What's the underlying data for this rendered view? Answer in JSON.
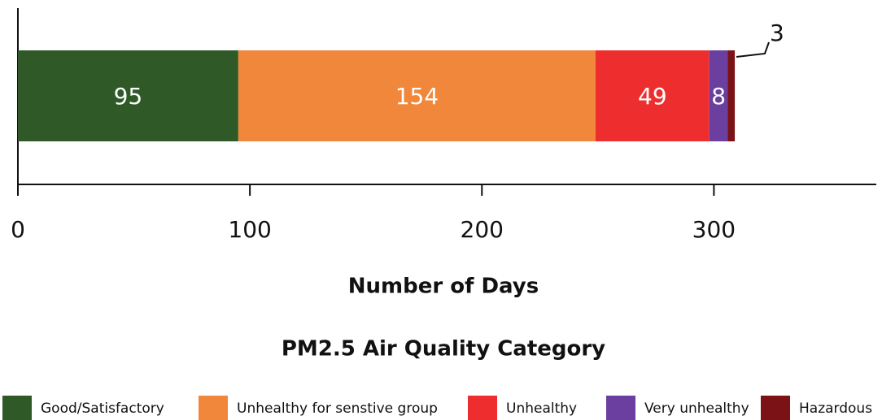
{
  "chart_data": {
    "type": "stacked_bar_horizontal",
    "x_label": "Number of Days",
    "legend_title": "PM2.5 Air Quality Category",
    "series": [
      {
        "name": "Good/Satisfactory",
        "color": "#2f5a28",
        "values": [
          95
        ]
      },
      {
        "name": "Unhealthy for senstive group",
        "color": "#f0873a",
        "values": [
          154
        ]
      },
      {
        "name": "Unhealthy",
        "color": "#ee2e2e",
        "values": [
          49
        ]
      },
      {
        "name": "Very unhealthy",
        "color": "#6b3fa0",
        "values": [
          8
        ]
      },
      {
        "name": "Hazardous",
        "color": "#7b1216",
        "values": [
          3
        ]
      }
    ],
    "xlim": [
      0,
      370
    ],
    "xticks": [
      0,
      100,
      200,
      300
    ],
    "legend": "bottom"
  }
}
